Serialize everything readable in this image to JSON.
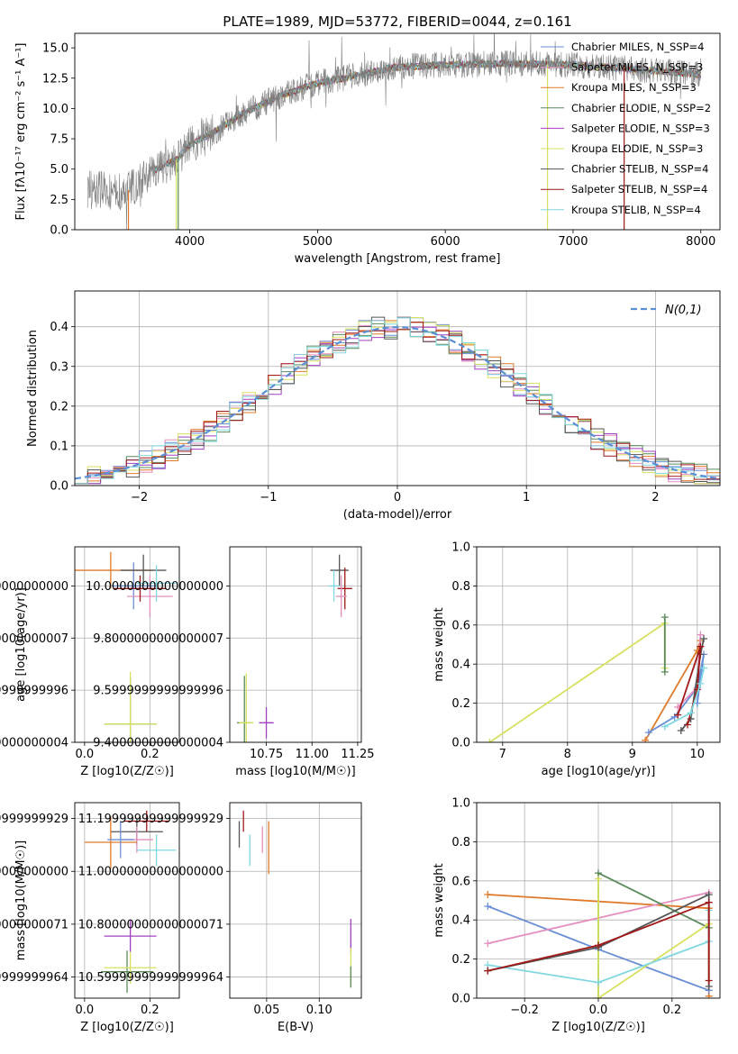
{
  "colors": {
    "chab_miles": "#6a8fd6",
    "salp_miles": "#e48fbf",
    "kroupa_miles": "#e07a2a",
    "chab_elodie": "#5a8a5a",
    "salp_elodie": "#a040c0",
    "kroupa_elodie": "#d8e060",
    "chab_stelib": "#555555",
    "salp_stelib": "#a01818",
    "kroupa_stelib": "#80d8e0",
    "data": "#808080",
    "normal": "#5b8fd6",
    "grid": "#b0b0b0"
  },
  "chart_data": [
    {
      "id": "spectrum",
      "type": "line",
      "title": "PLATE=1989, MJD=53772, FIBERID=0044, z=0.161",
      "xlabel": "wavelength [Angstrom, rest frame]",
      "ylabel": "Flux [fλ10⁻¹⁷ erg cm⁻² s⁻¹ A⁻¹]",
      "xlim": [
        3100,
        8150
      ],
      "ylim": [
        0,
        16.2
      ],
      "xticks": [
        4000,
        5000,
        6000,
        7000,
        8000
      ],
      "yticks": [
        0.0,
        2.5,
        5.0,
        7.5,
        10.0,
        12.5,
        15.0
      ],
      "continuum": {
        "x": [
          3200,
          3500,
          3700,
          3900,
          4000,
          4200,
          4400,
          4700,
          5000,
          5300,
          5600,
          6000,
          6500,
          7000,
          7400,
          8000
        ],
        "y": [
          3.4,
          3.1,
          4.8,
          5.8,
          7.0,
          8.1,
          9.5,
          11.0,
          12.1,
          12.7,
          13.4,
          13.6,
          13.7,
          13.6,
          13.3,
          12.8
        ]
      },
      "legend": [
        "Chabrier MILES, N_SSP=4",
        "Salpeter MILES, N_SSP=3",
        "Kroupa MILES, N_SSP=3",
        "Chabrier ELODIE, N_SSP=2",
        "Salpeter ELODIE, N_SSP=3",
        "Kroupa ELODIE, N_SSP=3",
        "Chabrier STELIB, N_SSP=4",
        "Salpeter STELIB, N_SSP=4",
        "Kroupa STELIB, N_SSP=4"
      ],
      "legend_position": "top-right",
      "grid": false
    },
    {
      "id": "residuals",
      "type": "line",
      "xlabel": "(data-model)/error",
      "ylabel": "Normed distribution",
      "xlim": [
        -2.5,
        2.5
      ],
      "ylim": [
        0,
        0.49
      ],
      "xticks": [
        -2,
        -1,
        0,
        1,
        2
      ],
      "yticks": [
        0.0,
        0.1,
        0.2,
        0.3,
        0.4
      ],
      "legend": [
        "N(0,1)"
      ],
      "legend_position": "top-right",
      "grid": true
    },
    {
      "id": "age_vs_Z",
      "type": "scatter",
      "xlabel": "Z [log10(Z/Z☉)]",
      "ylabel": "age  [log10(age/yr)]",
      "xlim": [
        -0.03,
        0.29
      ],
      "ylim": [
        9.4,
        10.15
      ],
      "xticks": [
        0.0,
        0.2
      ],
      "yticks": [
        9.4,
        9.6,
        9.8,
        10.0
      ],
      "points": [
        {
          "x": 0.15,
          "y": 10.0,
          "xerr": 0.07,
          "yerr": 0.09,
          "c": "chab_miles"
        },
        {
          "x": 0.2,
          "y": 9.96,
          "xerr": 0.07,
          "yerr": 0.08,
          "c": "salp_miles"
        },
        {
          "x": 0.08,
          "y": 10.06,
          "xerr": 0.13,
          "yerr": 0.07,
          "c": "kroupa_miles"
        },
        {
          "x": 0.14,
          "y": 9.47,
          "xerr": 0.08,
          "yerr": 0.18,
          "c": "chab_elodie"
        },
        {
          "x": 0.14,
          "y": 9.47,
          "xerr": 0.08,
          "yerr": 0.2,
          "c": "kroupa_elodie"
        },
        {
          "x": 0.18,
          "y": 10.06,
          "xerr": 0.07,
          "yerr": 0.06,
          "c": "chab_stelib"
        },
        {
          "x": 0.17,
          "y": 9.99,
          "xerr": 0.08,
          "yerr": 0.05,
          "c": "salp_stelib"
        },
        {
          "x": 0.22,
          "y": 10.01,
          "xerr": 0.06,
          "yerr": 0.07,
          "c": "kroupa_stelib"
        }
      ],
      "grid": true
    },
    {
      "id": "age_vs_mass",
      "type": "scatter",
      "xlabel": "mass [log10(M/M☉)]",
      "xlim": [
        10.55,
        11.27
      ],
      "ylim": [
        9.4,
        10.15
      ],
      "xticks": [
        10.75,
        11.0,
        11.25
      ],
      "xticklabels": [
        "10.75",
        "11.00",
        "11.25"
      ],
      "yticks": [
        9.4,
        9.6,
        9.8,
        10.0
      ],
      "points": [
        {
          "x": 11.15,
          "y": 10.06,
          "xerr": 0.05,
          "yerr": 0.06,
          "c": "chab_stelib"
        },
        {
          "x": 11.18,
          "y": 9.99,
          "xerr": 0.04,
          "yerr": 0.08,
          "c": "salp_stelib"
        },
        {
          "x": 11.12,
          "y": 10.0,
          "xerr": 0.03,
          "yerr": 0.06,
          "c": "kroupa_stelib"
        },
        {
          "x": 11.16,
          "y": 9.96,
          "xerr": 0.03,
          "yerr": 0.08,
          "c": "salp_miles"
        },
        {
          "x": 10.75,
          "y": 9.475,
          "xerr": 0.04,
          "yerr": 0.06,
          "c": "salp_elodie"
        },
        {
          "x": 10.63,
          "y": 9.475,
          "xerr": 0.04,
          "yerr": 0.18,
          "c": "chab_elodie"
        },
        {
          "x": 10.64,
          "y": 9.475,
          "xerr": 0.04,
          "yerr": 0.19,
          "c": "kroupa_elodie"
        }
      ],
      "grid": true
    },
    {
      "id": "weight_vs_age",
      "type": "line",
      "xlabel": "age  [log10(age/yr)]",
      "ylabel": "mass weight",
      "xlim": [
        6.6,
        10.35
      ],
      "ylim": [
        0,
        1.0
      ],
      "xticks": [
        7,
        8,
        9,
        10
      ],
      "yticks": [
        0.0,
        0.2,
        0.4,
        0.6,
        0.8,
        1.0
      ],
      "series": [
        {
          "c": "kroupa_elodie",
          "x": [
            6.8,
            9.5,
            9.5
          ],
          "y": [
            0.0,
            0.61,
            0.38
          ]
        },
        {
          "c": "chab_elodie",
          "x": [
            9.5,
            9.5
          ],
          "y": [
            0.64,
            0.36
          ]
        },
        {
          "c": "kroupa_miles",
          "x": [
            9.2,
            10.0,
            10.05
          ],
          "y": [
            0.01,
            0.47,
            0.52
          ]
        },
        {
          "c": "chab_miles",
          "x": [
            9.25,
            9.65,
            10.0,
            10.1,
            10.0
          ],
          "y": [
            0.05,
            0.13,
            0.28,
            0.45,
            0.2
          ]
        },
        {
          "c": "salp_miles",
          "x": [
            9.7,
            10.0,
            10.05
          ],
          "y": [
            0.18,
            0.28,
            0.55
          ]
        },
        {
          "c": "chab_stelib",
          "x": [
            9.75,
            9.9,
            10.05,
            10.1
          ],
          "y": [
            0.06,
            0.12,
            0.45,
            0.53
          ]
        },
        {
          "c": "salp_stelib",
          "x": [
            9.85,
            10.0,
            10.05,
            9.7
          ],
          "y": [
            0.09,
            0.27,
            0.49,
            0.14
          ]
        },
        {
          "c": "kroupa_stelib",
          "x": [
            9.5,
            9.9,
            10.05,
            10.1
          ],
          "y": [
            0.08,
            0.15,
            0.3,
            0.38
          ]
        }
      ],
      "grid": true
    },
    {
      "id": "mass_vs_Z",
      "type": "scatter",
      "xlabel": "Z [log10(Z/Z☉)]",
      "ylabel": "mass [log10(M/M☉)]",
      "xlim": [
        -0.03,
        0.29
      ],
      "ylim": [
        10.52,
        11.26
      ],
      "xticks": [
        0.0,
        0.2
      ],
      "yticks": [
        10.6,
        10.8,
        11.0,
        11.2
      ],
      "points": [
        {
          "x": 0.19,
          "y": 11.19,
          "xerr": 0.07,
          "yerr": 0.04,
          "c": "salp_stelib"
        },
        {
          "x": 0.16,
          "y": 11.15,
          "xerr": 0.08,
          "yerr": 0.05,
          "c": "chab_stelib"
        },
        {
          "x": 0.16,
          "y": 11.12,
          "xerr": 0.05,
          "yerr": 0.05,
          "c": "salp_miles"
        },
        {
          "x": 0.08,
          "y": 11.11,
          "xerr": 0.08,
          "yerr": 0.1,
          "c": "kroupa_miles"
        },
        {
          "x": 0.11,
          "y": 11.12,
          "xerr": 0.04,
          "yerr": 0.07,
          "c": "chab_miles"
        },
        {
          "x": 0.22,
          "y": 11.08,
          "xerr": 0.06,
          "yerr": 0.06,
          "c": "kroupa_stelib"
        },
        {
          "x": 0.14,
          "y": 10.755,
          "xerr": 0.08,
          "yerr": 0.06,
          "c": "salp_elodie"
        },
        {
          "x": 0.13,
          "y": 10.62,
          "xerr": 0.08,
          "yerr": 0.08,
          "c": "chab_elodie"
        },
        {
          "x": 0.14,
          "y": 10.635,
          "xerr": 0.08,
          "yerr": 0.06,
          "c": "kroupa_elodie"
        }
      ],
      "grid": true
    },
    {
      "id": "mass_vs_EBV",
      "type": "scatter",
      "xlabel": "E(B-V)",
      "xlim": [
        0.015,
        0.14
      ],
      "ylim": [
        10.52,
        11.26
      ],
      "xticks": [
        0.05,
        0.1
      ],
      "xticklabels": [
        "0.05",
        "0.10"
      ],
      "yticks": [
        10.6,
        10.8,
        11.0,
        11.2
      ],
      "points": [
        {
          "x": 0.028,
          "y": 11.19,
          "xerr": 0,
          "yerr": 0.04,
          "c": "salp_stelib"
        },
        {
          "x": 0.024,
          "y": 11.14,
          "xerr": 0,
          "yerr": 0.05,
          "c": "chab_stelib"
        },
        {
          "x": 0.046,
          "y": 11.12,
          "xerr": 0,
          "yerr": 0.05,
          "c": "salp_miles"
        },
        {
          "x": 0.052,
          "y": 11.09,
          "xerr": 0,
          "yerr": 0.1,
          "c": "kroupa_miles"
        },
        {
          "x": 0.034,
          "y": 11.08,
          "xerr": 0,
          "yerr": 0.06,
          "c": "kroupa_stelib"
        },
        {
          "x": 0.13,
          "y": 10.755,
          "xerr": 0,
          "yerr": 0.065,
          "c": "salp_elodie"
        },
        {
          "x": 0.13,
          "y": 10.64,
          "xerr": 0,
          "yerr": 0.07,
          "c": "kroupa_elodie"
        },
        {
          "x": 0.13,
          "y": 10.6,
          "xerr": 0,
          "yerr": 0.04,
          "c": "chab_elodie"
        }
      ],
      "grid": true
    },
    {
      "id": "weight_vs_Z",
      "type": "line",
      "xlabel": "Z [log10(Z/Z☉)]",
      "ylabel": "mass weight",
      "xlim": [
        -0.33,
        0.33
      ],
      "ylim": [
        0,
        1.0
      ],
      "xticks": [
        -0.2,
        0.0,
        0.2
      ],
      "yticks": [
        0.0,
        0.2,
        0.4,
        0.6,
        0.8,
        1.0
      ],
      "series": [
        {
          "c": "kroupa_miles",
          "x": [
            -0.3,
            0.3,
            0.3
          ],
          "y": [
            0.53,
            0.46,
            0.01
          ]
        },
        {
          "c": "chab_miles",
          "x": [
            -0.3,
            0.0,
            0.3
          ],
          "y": [
            0.47,
            0.25,
            0.04
          ]
        },
        {
          "c": "salp_miles",
          "x": [
            -0.3,
            0.3
          ],
          "y": [
            0.28,
            0.54
          ]
        },
        {
          "c": "chab_elodie",
          "x": [
            0.0,
            0.0,
            0.3
          ],
          "y": [
            0.0,
            0.64,
            0.36
          ]
        },
        {
          "c": "kroupa_elodie",
          "x": [
            0.0,
            0.0,
            0.3
          ],
          "y": [
            0.61,
            0.0,
            0.38
          ]
        },
        {
          "c": "kroupa_stelib",
          "x": [
            -0.3,
            0.0,
            0.3,
            0.3
          ],
          "y": [
            0.17,
            0.08,
            0.29,
            0.45
          ]
        },
        {
          "c": "chab_stelib",
          "x": [
            -0.3,
            0.0,
            0.3,
            0.3
          ],
          "y": [
            0.14,
            0.26,
            0.53,
            0.06
          ]
        },
        {
          "c": "salp_stelib",
          "x": [
            -0.3,
            0.0,
            0.3,
            0.3
          ],
          "y": [
            0.14,
            0.27,
            0.49,
            0.09
          ]
        }
      ],
      "grid": true
    }
  ]
}
